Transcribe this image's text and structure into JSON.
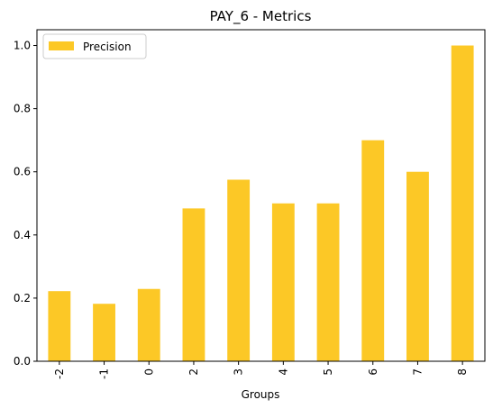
{
  "chart_data": {
    "type": "bar",
    "title": "PAY_6 - Metrics",
    "xlabel": "Groups",
    "ylabel": "",
    "categories": [
      "-2",
      "-1",
      "0",
      "2",
      "3",
      "4",
      "5",
      "6",
      "7",
      "8"
    ],
    "series": [
      {
        "name": "Precision",
        "values": [
          0.222,
          0.182,
          0.229,
          0.484,
          0.575,
          0.5,
          0.5,
          0.7,
          0.6,
          1.0
        ],
        "color": "#fcc826"
      }
    ],
    "ylim": [
      0,
      1.05
    ],
    "yticks": [
      "0.0",
      "0.2",
      "0.4",
      "0.6",
      "0.8",
      "1.0"
    ],
    "grid": false,
    "legend_position": "top-left"
  }
}
